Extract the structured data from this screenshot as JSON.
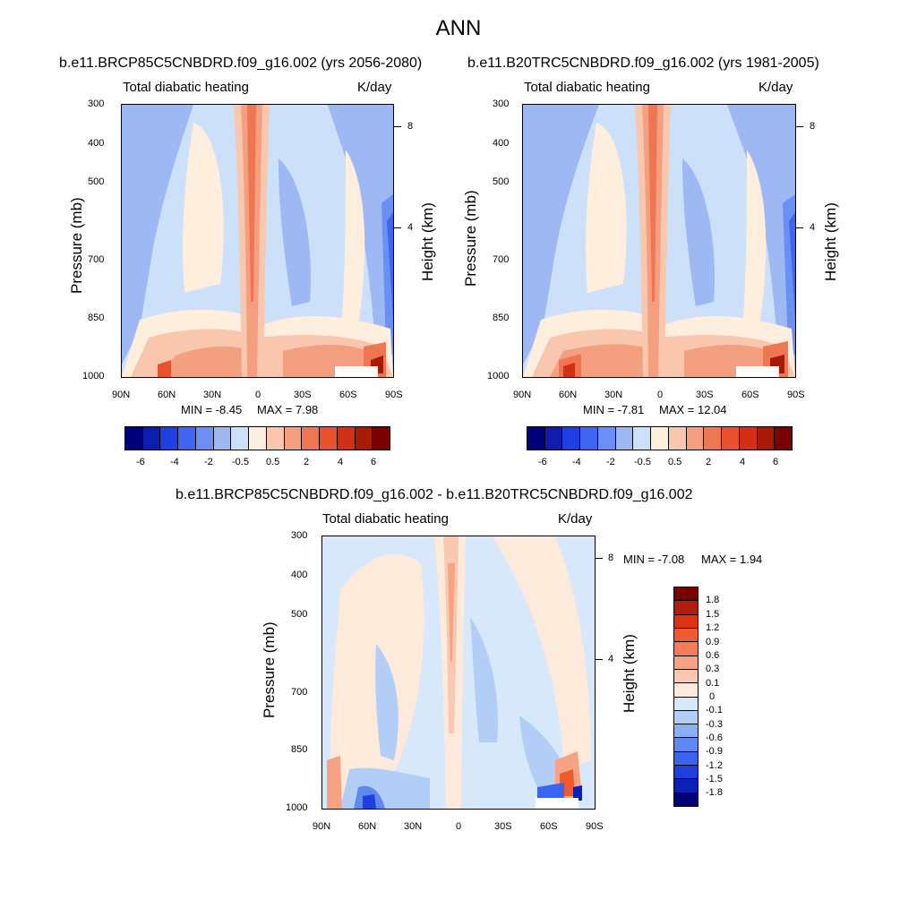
{
  "main_title": "ANN",
  "panels": [
    {
      "title": "b.e11.BRCP85C5CNBDRD.f09_g16.002 (yrs 2056-2080)",
      "variable": "Total diabatic heating",
      "units": "K/day",
      "ylabel": "Pressure (mb)",
      "ylabel_right": "Height (km)",
      "min_label": "MIN =  -8.45",
      "max_label": "MAX =   7.98"
    },
    {
      "title": "b.e11.B20TRC5CNBDRD.f09_g16.002 (yrs 1981-2005)",
      "variable": "Total diabatic heating",
      "units": "K/day",
      "ylabel": "Pressure (mb)",
      "ylabel_right": "Height (km)",
      "min_label": "MIN =  -7.81",
      "max_label": "MAX =  12.04"
    },
    {
      "title": "b.e11.BRCP85C5CNBDRD.f09_g16.002 - b.e11.B20TRC5CNBDRD.f09_g16.002",
      "variable": "Total diabatic heating",
      "units": "K/day",
      "ylabel": "Pressure (mb)",
      "ylabel_right": "Height (km)",
      "min_label": "MIN =  -7.08",
      "max_label": "MAX =   1.94"
    }
  ],
  "pressure_ticks": [
    "300",
    "400",
    "500",
    "700",
    "850",
    "1000"
  ],
  "height_ticks": [
    "8",
    "4"
  ],
  "lat_ticks": [
    "90N",
    "60N",
    "30N",
    "0",
    "30S",
    "60S",
    "90S"
  ],
  "colorbar_main": {
    "labels": [
      "-6",
      "-4",
      "-2",
      "-0.5",
      "0.5",
      "2",
      "4",
      "6"
    ],
    "colors": [
      "#00007a",
      "#0f1cb0",
      "#1f3fe0",
      "#3f66f2",
      "#6b8ff5",
      "#9db8f2",
      "#cde0fa",
      "#fdeedd",
      "#f8c7ad",
      "#f49f80",
      "#ef7652",
      "#e9502c",
      "#d42e14",
      "#a81a08",
      "#7a0000"
    ]
  },
  "colorbar_diff": {
    "labels": [
      "1.8",
      "1.5",
      "1.2",
      "0.9",
      "0.6",
      "0.3",
      "0.1",
      "0",
      "-0.1",
      "-0.3",
      "-0.6",
      "-0.9",
      "-1.2",
      "-1.5",
      "-1.8"
    ],
    "colors": [
      "#7a0000",
      "#b01d0a",
      "#de3214",
      "#f05a2f",
      "#f27d57",
      "#f5a383",
      "#fac8b0",
      "#fdeadb",
      "#d8e8fb",
      "#b2cdf6",
      "#88aef3",
      "#5f89f0",
      "#3a64ef",
      "#1d3fe0",
      "#0c20b5",
      "#00007a"
    ]
  },
  "chart_data": [
    {
      "type": "heatmap",
      "title": "b.e11.BRCP85C5CNBDRD.f09_g16.002 (yrs 2056-2080)",
      "xlabel": "",
      "ylabel": "Pressure (mb)",
      "x": [
        "90N",
        "60N",
        "30N",
        "0",
        "30S",
        "60S",
        "90S"
      ],
      "y": [
        300,
        400,
        500,
        700,
        850,
        1000
      ],
      "min": -8.45,
      "max": 7.98,
      "units": "K/day"
    },
    {
      "type": "heatmap",
      "title": "b.e11.B20TRC5CNBDRD.f09_g16.002 (yrs 1981-2005)",
      "xlabel": "",
      "ylabel": "Pressure (mb)",
      "x": [
        "90N",
        "60N",
        "30N",
        "0",
        "30S",
        "60S",
        "90S"
      ],
      "y": [
        300,
        400,
        500,
        700,
        850,
        1000
      ],
      "min": -7.81,
      "max": 12.04,
      "units": "K/day"
    },
    {
      "type": "heatmap",
      "title": "b.e11.BRCP85C5CNBDRD.f09_g16.002 - b.e11.B20TRC5CNBDRD.f09_g16.002",
      "xlabel": "",
      "ylabel": "Pressure (mb)",
      "x": [
        "90N",
        "60N",
        "30N",
        "0",
        "30S",
        "60S",
        "90S"
      ],
      "y": [
        300,
        400,
        500,
        700,
        850,
        1000
      ],
      "min": -7.08,
      "max": 1.94,
      "units": "K/day"
    }
  ]
}
